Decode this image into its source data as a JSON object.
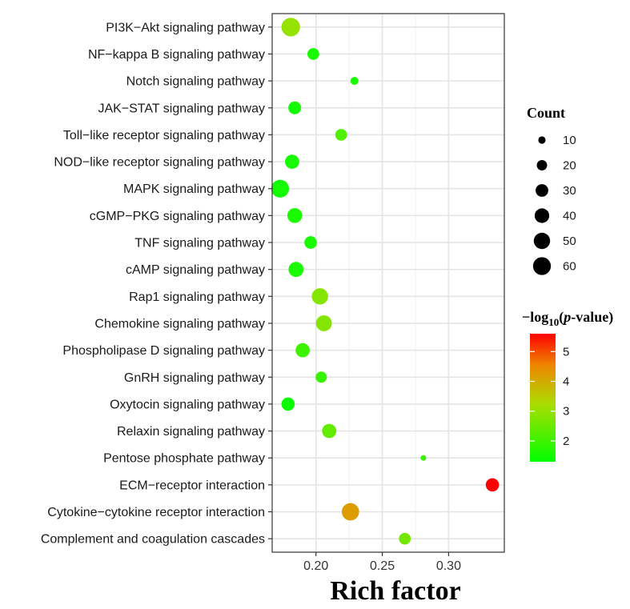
{
  "chart_data": {
    "type": "scatter",
    "categories": [
      "PI3K−Akt signaling pathway",
      "NF−kappa B signaling pathway",
      "Notch signaling pathway",
      "JAK−STAT signaling pathway",
      "Toll−like receptor signaling pathway",
      "NOD−like receptor signaling pathway",
      "MAPK signaling pathway",
      "cGMP−PKG signaling pathway",
      "TNF signaling pathway",
      "cAMP signaling pathway",
      "Rap1 signaling pathway",
      "Chemokine signaling pathway",
      "Phospholipase D signaling pathway",
      "GnRH signaling pathway",
      "Oxytocin signaling pathway",
      "Relaxin signaling pathway",
      "Pentose phosphate pathway",
      "ECM−receptor interaction",
      "Cytokine−cytokine receptor interaction",
      "Complement and coagulation cascades"
    ],
    "points": [
      {
        "rich_factor": 0.181,
        "count": 55,
        "neg_log10_p": 3.0
      },
      {
        "rich_factor": 0.198,
        "count": 22,
        "neg_log10_p": 1.6
      },
      {
        "rich_factor": 0.229,
        "count": 10,
        "neg_log10_p": 1.6
      },
      {
        "rich_factor": 0.184,
        "count": 26,
        "neg_log10_p": 1.5
      },
      {
        "rich_factor": 0.219,
        "count": 22,
        "neg_log10_p": 2.2
      },
      {
        "rich_factor": 0.182,
        "count": 32,
        "neg_log10_p": 1.6
      },
      {
        "rich_factor": 0.173,
        "count": 50,
        "neg_log10_p": 1.5
      },
      {
        "rich_factor": 0.184,
        "count": 35,
        "neg_log10_p": 1.6
      },
      {
        "rich_factor": 0.196,
        "count": 25,
        "neg_log10_p": 1.6
      },
      {
        "rich_factor": 0.185,
        "count": 36,
        "neg_log10_p": 1.6
      },
      {
        "rich_factor": 0.203,
        "count": 42,
        "neg_log10_p": 2.8
      },
      {
        "rich_factor": 0.206,
        "count": 40,
        "neg_log10_p": 2.8
      },
      {
        "rich_factor": 0.19,
        "count": 32,
        "neg_log10_p": 2.0
      },
      {
        "rich_factor": 0.204,
        "count": 20,
        "neg_log10_p": 1.9
      },
      {
        "rich_factor": 0.179,
        "count": 28,
        "neg_log10_p": 1.4
      },
      {
        "rich_factor": 0.21,
        "count": 32,
        "neg_log10_p": 2.4
      },
      {
        "rich_factor": 0.281,
        "count": 5,
        "neg_log10_p": 2.0
      },
      {
        "rich_factor": 0.333,
        "count": 28,
        "neg_log10_p": 5.6
      },
      {
        "rich_factor": 0.226,
        "count": 48,
        "neg_log10_p": 4.2
      },
      {
        "rich_factor": 0.267,
        "count": 22,
        "neg_log10_p": 2.6
      }
    ],
    "xlabel": "Rich factor",
    "xlim": [
      0.167,
      0.342
    ],
    "xticks": [
      0.2,
      0.25,
      0.3
    ],
    "xtick_labels": [
      "0.20",
      "0.25",
      "0.30"
    ],
    "grid": true,
    "size_legend": {
      "title": "Count",
      "values": [
        10,
        20,
        30,
        40,
        50,
        60
      ],
      "labels": [
        "10",
        "20",
        "30",
        "40",
        "50",
        "60"
      ]
    },
    "color_legend": {
      "title_prefix": "−log",
      "title_sub": "10",
      "title_open": "(",
      "title_italic": "p",
      "title_rest": "-value)",
      "range": [
        1.3,
        5.6
      ],
      "ticks": [
        2,
        3,
        4,
        5
      ],
      "tick_labels": [
        "2",
        "3",
        "4",
        "5"
      ],
      "colors": [
        "#00ff00",
        "#aadd00",
        "#ff0000"
      ],
      "legend_position": "right"
    }
  }
}
